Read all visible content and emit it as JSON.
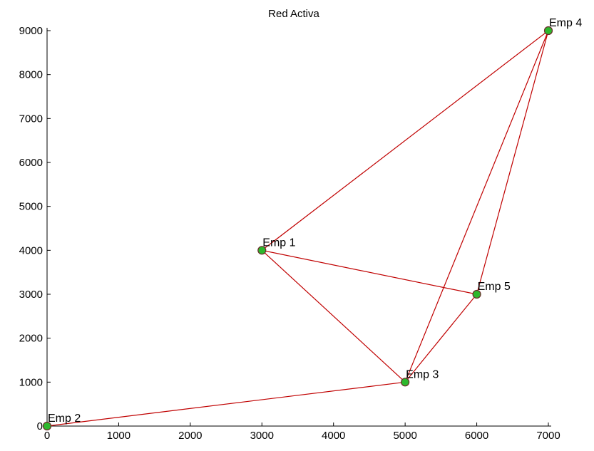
{
  "chart_data": {
    "type": "scatter",
    "title": "Red Activa",
    "xlabel": "",
    "ylabel": "",
    "xlim": [
      0,
      7000
    ],
    "ylim": [
      0,
      9000
    ],
    "x_ticks": [
      "0",
      "1000",
      "2000",
      "3000",
      "4000",
      "5000",
      "6000",
      "7000"
    ],
    "y_ticks": [
      "0",
      "1000",
      "2000",
      "3000",
      "4000",
      "5000",
      "6000",
      "7000",
      "8000",
      "9000"
    ],
    "grid": false,
    "nodes": [
      {
        "label": "Emp 1",
        "x": 3000,
        "y": 4000
      },
      {
        "label": "Emp 2",
        "x": 0,
        "y": 0
      },
      {
        "label": "Emp 3",
        "x": 5000,
        "y": 1000
      },
      {
        "label": "Emp 4",
        "x": 7000,
        "y": 9000
      },
      {
        "label": "Emp 5",
        "x": 6000,
        "y": 3000
      }
    ],
    "edges": [
      [
        "Emp 1",
        "Emp 4"
      ],
      [
        "Emp 1",
        "Emp 5"
      ],
      [
        "Emp 1",
        "Emp 3"
      ],
      [
        "Emp 2",
        "Emp 3"
      ],
      [
        "Emp 3",
        "Emp 4"
      ],
      [
        "Emp 3",
        "Emp 5"
      ],
      [
        "Emp 5",
        "Emp 4"
      ]
    ],
    "colors": {
      "edge": "#c00000",
      "node_fill": "#2db82d",
      "node_stroke": "#6b2a2a",
      "axis": "#000000"
    }
  }
}
